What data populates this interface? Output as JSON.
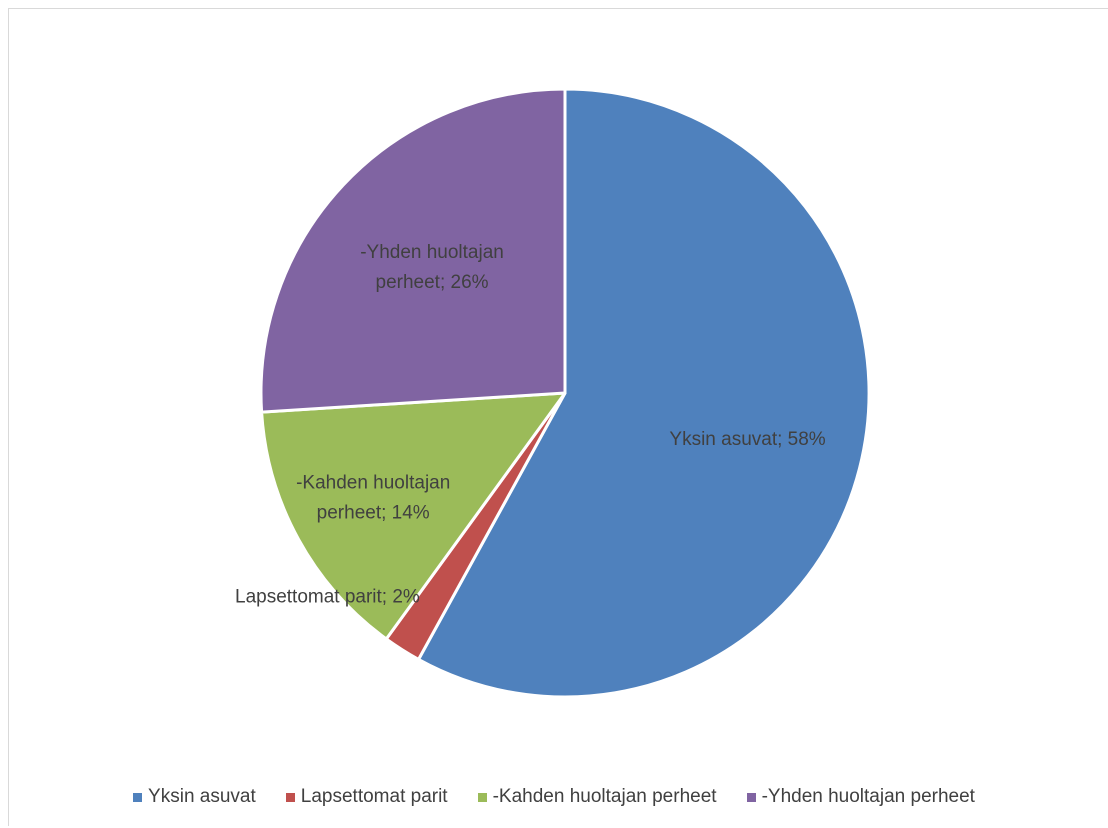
{
  "chart_data": {
    "type": "pie",
    "title": "",
    "categories": [
      "Yksin asuvat",
      "Lapsettomat parit",
      "-Kahden huoltajan perheet",
      "-Yhden huoltajan perheet"
    ],
    "values": [
      58,
      2,
      14,
      26
    ],
    "unit": "%",
    "colors": [
      "#4f81bd",
      "#c0504d",
      "#9bbb59",
      "#8064a2"
    ],
    "data_labels": [
      "Yksin asuvat; 58%",
      "Lapsettomat parit; 2%",
      [
        "-Kahden huoltajan",
        "perheet; 14%"
      ],
      [
        "-Yhden huoltajan",
        "perheet; 26%"
      ]
    ],
    "legend": {
      "position": "bottom",
      "entries": [
        "Yksin asuvat",
        "Lapsettomat parit",
        "-Kahden huoltajan perheet",
        "-Yhden huoltajan perheet"
      ]
    },
    "start_angle": "12 o'clock",
    "direction": "clockwise"
  }
}
